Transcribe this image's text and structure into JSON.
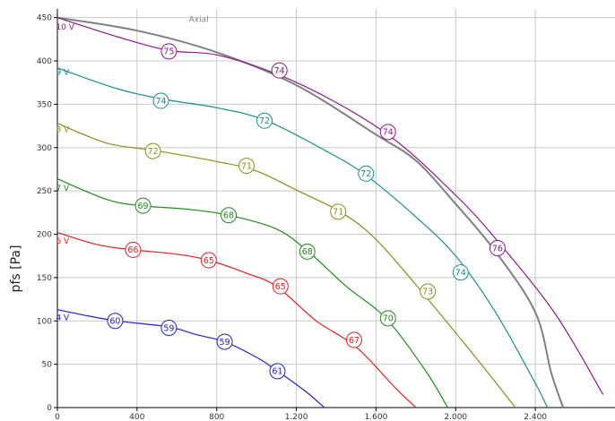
{
  "chart_data": {
    "type": "line",
    "ylabel": "pfs [Pa]",
    "xlabel": "",
    "xlim": [
      0,
      2800
    ],
    "ylim": [
      0,
      460
    ],
    "x_ticks": [
      0,
      400,
      800,
      1200,
      1600,
      2000,
      2400
    ],
    "x_tick_labels": [
      "0",
      "400",
      "800",
      "1.200",
      "1.600",
      "2.000",
      "2.400"
    ],
    "y_ticks": [
      0,
      50,
      100,
      150,
      200,
      250,
      300,
      350,
      400,
      450
    ],
    "y_tick_labels": [
      "0",
      "50",
      "100",
      "150",
      "200",
      "250",
      "300",
      "350",
      "400",
      "450"
    ],
    "grid": true,
    "series": [
      {
        "name": "Axial",
        "color": "#808080",
        "label_x": 660,
        "label_y": 445,
        "points": [
          [
            0,
            450
          ],
          [
            400,
            435
          ],
          [
            800,
            410
          ],
          [
            1200,
            372
          ],
          [
            1600,
            315
          ],
          [
            1800,
            285
          ],
          [
            2000,
            235
          ],
          [
            2200,
            180
          ],
          [
            2400,
            110
          ],
          [
            2480,
            40
          ],
          [
            2540,
            0
          ]
        ]
      },
      {
        "name": "10 V",
        "color": "#8B1A8B",
        "label_x": 20,
        "label_y": 436,
        "points": [
          [
            0,
            450
          ],
          [
            300,
            428
          ],
          [
            560,
            412
          ],
          [
            800,
            407
          ],
          [
            1100,
            385
          ],
          [
            1400,
            352
          ],
          [
            1700,
            308
          ],
          [
            2000,
            245
          ],
          [
            2200,
            195
          ],
          [
            2500,
            108
          ],
          [
            2740,
            15
          ]
        ],
        "markers": [
          {
            "x": 560,
            "y": 411,
            "label": "75"
          },
          {
            "x": 1115,
            "y": 389,
            "label": "74"
          },
          {
            "x": 1660,
            "y": 318,
            "label": "74"
          },
          {
            "x": 2210,
            "y": 184,
            "label": "76"
          }
        ]
      },
      {
        "name": "9 V",
        "color": "#1A8C8C",
        "label_x": 20,
        "label_y": 384,
        "points": [
          [
            0,
            392
          ],
          [
            300,
            368
          ],
          [
            530,
            356
          ],
          [
            800,
            346
          ],
          [
            1050,
            331
          ],
          [
            1350,
            296
          ],
          [
            1550,
            268
          ],
          [
            1800,
            220
          ],
          [
            2000,
            175
          ],
          [
            2200,
            110
          ],
          [
            2400,
            28
          ],
          [
            2460,
            0
          ]
        ],
        "markers": [
          {
            "x": 520,
            "y": 354,
            "label": "74"
          },
          {
            "x": 1040,
            "y": 331,
            "label": "72"
          },
          {
            "x": 1550,
            "y": 270,
            "label": "72"
          },
          {
            "x": 2025,
            "y": 156,
            "label": "74"
          }
        ]
      },
      {
        "name": "8 V",
        "color": "#8C8C1A",
        "label_x": 20,
        "label_y": 318,
        "points": [
          [
            0,
            328
          ],
          [
            250,
            305
          ],
          [
            480,
            297
          ],
          [
            800,
            284
          ],
          [
            1000,
            273
          ],
          [
            1200,
            251
          ],
          [
            1420,
            226
          ],
          [
            1600,
            194
          ],
          [
            1850,
            128
          ],
          [
            2100,
            58
          ],
          [
            2300,
            0
          ]
        ],
        "markers": [
          {
            "x": 480,
            "y": 296,
            "label": "72"
          },
          {
            "x": 950,
            "y": 279,
            "label": "71"
          },
          {
            "x": 1410,
            "y": 226,
            "label": "71"
          },
          {
            "x": 1860,
            "y": 134,
            "label": "73"
          }
        ]
      },
      {
        "name": "7 V",
        "color": "#1E8C1E",
        "label_x": 20,
        "label_y": 250,
        "points": [
          [
            0,
            264
          ],
          [
            250,
            240
          ],
          [
            420,
            233
          ],
          [
            650,
            229
          ],
          [
            860,
            222
          ],
          [
            1100,
            206
          ],
          [
            1260,
            180
          ],
          [
            1450,
            140
          ],
          [
            1650,
            103
          ],
          [
            1850,
            42
          ],
          [
            1960,
            0
          ]
        ],
        "markers": [
          {
            "x": 430,
            "y": 233,
            "label": "69"
          },
          {
            "x": 860,
            "y": 222,
            "label": "68"
          },
          {
            "x": 1255,
            "y": 180,
            "label": "68"
          },
          {
            "x": 1660,
            "y": 103,
            "label": "70"
          }
        ]
      },
      {
        "name": "6 V",
        "color": "#E02020",
        "label_x": 20,
        "label_y": 189,
        "points": [
          [
            0,
            202
          ],
          [
            200,
            188
          ],
          [
            380,
            182
          ],
          [
            600,
            177
          ],
          [
            760,
            170
          ],
          [
            950,
            155
          ],
          [
            1100,
            140
          ],
          [
            1300,
            100
          ],
          [
            1500,
            70
          ],
          [
            1700,
            22
          ],
          [
            1800,
            0
          ]
        ],
        "markers": [
          {
            "x": 380,
            "y": 182,
            "label": "66"
          },
          {
            "x": 760,
            "y": 170,
            "label": "65"
          },
          {
            "x": 1120,
            "y": 140,
            "label": "65"
          },
          {
            "x": 1490,
            "y": 78,
            "label": "67"
          }
        ]
      },
      {
        "name": "4 V",
        "color": "#2020D0",
        "label_x": 20,
        "label_y": 101,
        "points": [
          [
            0,
            113
          ],
          [
            150,
            106
          ],
          [
            300,
            100
          ],
          [
            560,
            93
          ],
          [
            700,
            84
          ],
          [
            840,
            76
          ],
          [
            1000,
            58
          ],
          [
            1100,
            43
          ],
          [
            1250,
            18
          ],
          [
            1340,
            0
          ]
        ],
        "markers": [
          {
            "x": 290,
            "y": 100,
            "label": "60"
          },
          {
            "x": 560,
            "y": 92,
            "label": "59"
          },
          {
            "x": 840,
            "y": 76,
            "label": "59"
          },
          {
            "x": 1105,
            "y": 42,
            "label": "61"
          }
        ]
      }
    ]
  }
}
